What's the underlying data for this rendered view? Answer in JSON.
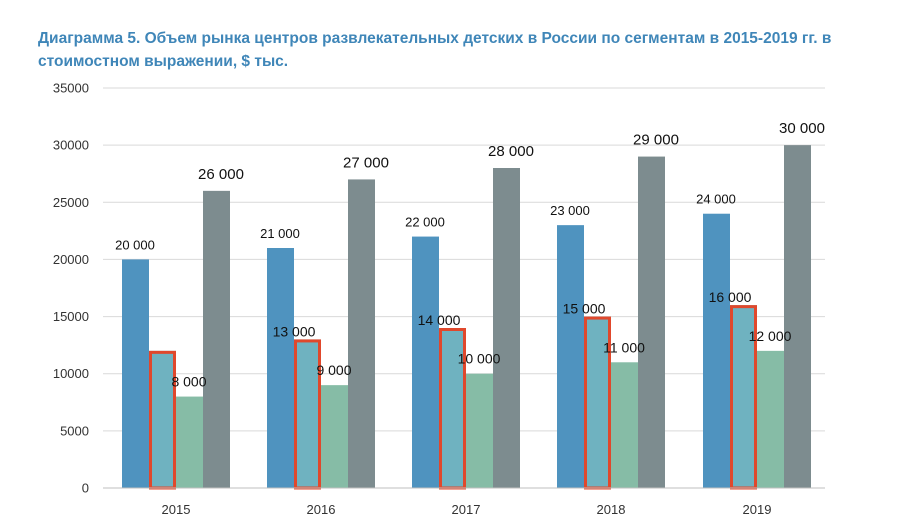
{
  "title": "Диаграмма 5. Объем рынка центров развлекательных детских в России по сегментам в 2015-2019 гг. в стоимостном выражении, $ тыс.",
  "colors": {
    "series1": "#4f93bf",
    "series2": "#6fb2c0",
    "series3": "#86bca6",
    "series4": "#7d8c8f",
    "highlight": "#e0482c",
    "title": "#3f86b8"
  },
  "chart_data": {
    "type": "bar",
    "categories": [
      "2015",
      "2016",
      "2017",
      "2018",
      "2019"
    ],
    "ylim": [
      0,
      35000
    ],
    "yticks": [
      0,
      5000,
      10000,
      15000,
      20000,
      25000,
      30000,
      35000
    ],
    "grid": true,
    "legend": "none",
    "xlabel": "",
    "ylabel": "",
    "series": [
      {
        "values": [
          20000,
          21000,
          22000,
          23000,
          24000
        ],
        "labels": [
          "20 000",
          "21 000",
          "22 000",
          "23 000",
          "24 000"
        ]
      },
      {
        "values": [
          12000,
          13000,
          14000,
          15000,
          16000
        ],
        "labels": [
          "",
          "13 000",
          "14 000",
          "15 000",
          "16 000"
        ],
        "highlighted": true
      },
      {
        "values": [
          8000,
          9000,
          10000,
          11000,
          12000
        ],
        "labels": [
          "8 000",
          "9 000",
          "10 000",
          "11 000",
          "12 000"
        ]
      },
      {
        "values": [
          26000,
          27000,
          28000,
          29000,
          30000
        ],
        "labels": [
          "26 000",
          "27 000",
          "28 000",
          "29 000",
          "30 000"
        ]
      }
    ]
  }
}
